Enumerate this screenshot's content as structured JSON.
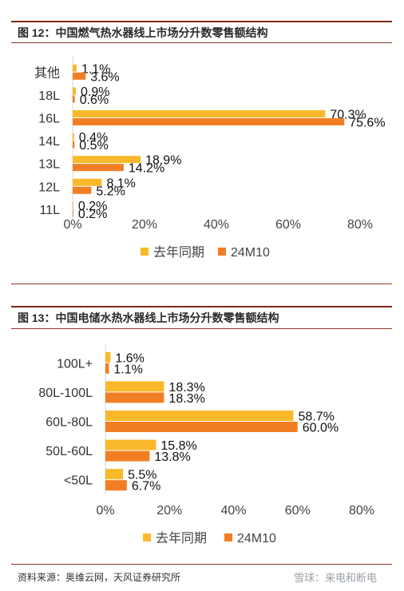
{
  "figures": [
    {
      "title": "图 12：中国燃气热水器线上市场分升数零售额结构"
    },
    {
      "title": "图 13：中国电储水热水器线上市场分升数零售额结构"
    }
  ],
  "footer": {
    "source": "资料来源：奥维云网，天风证券研究所",
    "watermark": "雪球：来电和断电"
  },
  "chart_data": [
    {
      "type": "bar",
      "orientation": "horizontal",
      "title": "图 12：中国燃气热水器线上市场分升数零售额结构",
      "categories": [
        "其他",
        "18L",
        "16L",
        "14L",
        "13L",
        "12L",
        "11L"
      ],
      "series": [
        {
          "name": "去年同期",
          "color": "#F9B92A",
          "values": [
            1.1,
            0.9,
            70.3,
            0.4,
            18.9,
            8.1,
            0.2
          ]
        },
        {
          "name": "24M10",
          "color": "#F27E24",
          "values": [
            3.6,
            0.6,
            75.6,
            0.5,
            14.2,
            5.2,
            0.2
          ]
        }
      ],
      "xlim": [
        0,
        80
      ],
      "xticks": [
        "0%",
        "20%",
        "40%",
        "60%",
        "80%"
      ],
      "value_suffix": "%",
      "grid": false,
      "legend": "bottom"
    },
    {
      "type": "bar",
      "orientation": "horizontal",
      "title": "图 13：中国电储水热水器线上市场分升数零售额结构",
      "categories": [
        "100L+",
        "80L-100L",
        "60L-80L",
        "50L-60L",
        "<50L"
      ],
      "series": [
        {
          "name": "去年同期",
          "color": "#F9B92A",
          "values": [
            1.6,
            18.3,
            58.7,
            15.8,
            5.5
          ]
        },
        {
          "name": "24M10",
          "color": "#F27E24",
          "values": [
            1.1,
            18.3,
            60.0,
            13.8,
            6.7
          ]
        }
      ],
      "xlim": [
        0,
        80
      ],
      "xticks": [
        "0%",
        "20%",
        "40%",
        "60%",
        "80%"
      ],
      "value_suffix": "%",
      "grid": false,
      "legend": "bottom"
    }
  ]
}
